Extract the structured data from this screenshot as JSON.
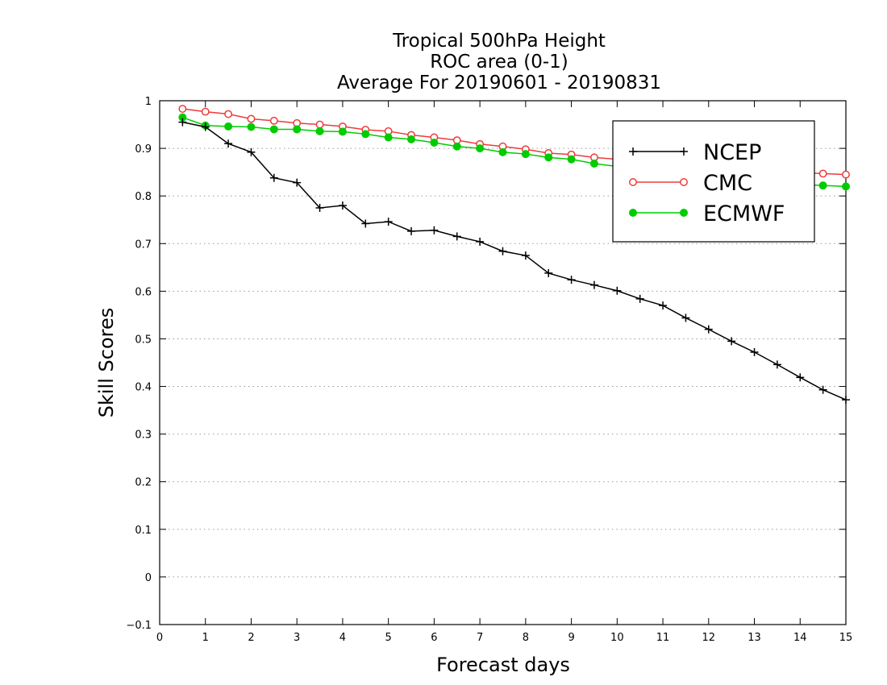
{
  "chart_data": {
    "type": "line",
    "title_lines": [
      "Tropical 500hPa Height",
      "ROC area (0-1)",
      "Average For 20190601 - 20190831"
    ],
    "xlabel": "Forecast days",
    "ylabel": "Skill Scores",
    "xlim": [
      0,
      15
    ],
    "ylim": [
      -0.1,
      1
    ],
    "xticks": [
      "0",
      "1",
      "2",
      "3",
      "4",
      "5",
      "6",
      "7",
      "8",
      "9",
      "10",
      "11",
      "12",
      "13",
      "14",
      "15"
    ],
    "yticks": [
      "−0.1",
      "0",
      "0.1",
      "0.2",
      "0.3",
      "0.4",
      "0.5",
      "0.6",
      "0.7",
      "0.8",
      "0.9",
      "1"
    ],
    "grid": "horizontal dotted",
    "legend_position": "top-right",
    "x": [
      0.5,
      1,
      1.5,
      2,
      2.5,
      3,
      3.5,
      4,
      4.5,
      5,
      5.5,
      6,
      6.5,
      7,
      7.5,
      8,
      8.5,
      9,
      9.5,
      10,
      10.5,
      11,
      11.5,
      12,
      12.5,
      13,
      13.5,
      14,
      14.5,
      15
    ],
    "series": [
      {
        "name": "NCEP",
        "color": "#000000",
        "marker": "plus",
        "values": [
          0.955,
          0.945,
          0.91,
          0.892,
          0.838,
          0.828,
          0.775,
          0.78,
          0.742,
          0.746,
          0.726,
          0.728,
          0.715,
          0.704,
          0.684,
          0.675,
          0.638,
          0.624,
          0.613,
          0.601,
          0.584,
          0.57,
          0.544,
          0.52,
          0.495,
          0.472,
          0.446,
          0.419,
          0.393,
          0.372
        ]
      },
      {
        "name": "CMC",
        "color": "#ee3b3b",
        "marker": "open-circle",
        "values": [
          0.983,
          0.977,
          0.972,
          0.962,
          0.958,
          0.953,
          0.95,
          0.946,
          0.939,
          0.936,
          0.928,
          0.923,
          0.917,
          0.909,
          0.904,
          0.898,
          0.89,
          0.887,
          0.881,
          0.877,
          0.873,
          0.87,
          0.866,
          0.862,
          0.858,
          0.855,
          0.852,
          0.849,
          0.847,
          0.845
        ]
      },
      {
        "name": "ECMWF",
        "color": "#00cc00",
        "marker": "filled-circle",
        "values": [
          0.965,
          0.948,
          0.946,
          0.945,
          0.94,
          0.94,
          0.936,
          0.935,
          0.93,
          0.923,
          0.919,
          0.912,
          0.904,
          0.9,
          0.892,
          0.888,
          0.881,
          0.877,
          0.868,
          0.862,
          0.856,
          0.85,
          0.845,
          0.84,
          0.835,
          0.831,
          0.828,
          0.824,
          0.822,
          0.82
        ]
      }
    ]
  }
}
